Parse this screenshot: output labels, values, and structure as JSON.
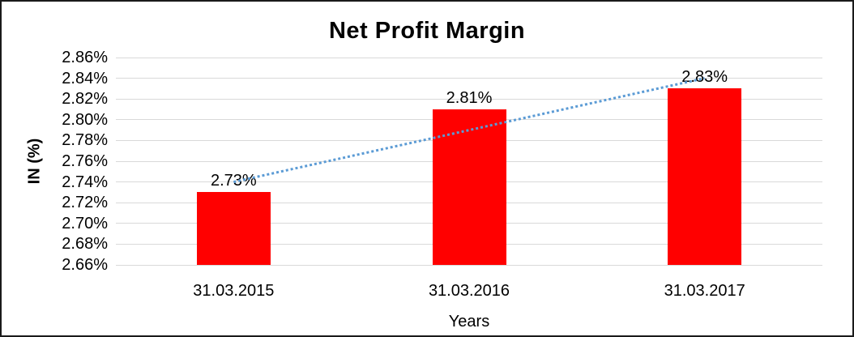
{
  "window": {
    "background": "#ffffff",
    "border_color": "#1a1a1a"
  },
  "chart_data": {
    "type": "bar",
    "title": "Net Profit Margin",
    "xlabel": "Years",
    "ylabel": "IN (%)",
    "categories": [
      "31.03.2015",
      "31.03.2016",
      "31.03.2017"
    ],
    "values": [
      2.73,
      2.81,
      2.83
    ],
    "data_labels": [
      "2.73%",
      "2.81%",
      "2.83%"
    ],
    "ylim": [
      2.66,
      2.86
    ],
    "ytick_step": 0.02,
    "ytick_labels": [
      "2.86%",
      "2.84%",
      "2.82%",
      "2.80%",
      "2.78%",
      "2.76%",
      "2.74%",
      "2.72%",
      "2.70%",
      "2.68%",
      "2.66%"
    ],
    "grid": true,
    "legend": false,
    "bar_color": "#FF0000",
    "gridline_color": "#D9D9D9",
    "text_color": "#000000",
    "trendline": {
      "type": "linear",
      "style": "dotted",
      "color": "#5B9BD5",
      "start_value": 2.74,
      "end_value": 2.84
    }
  }
}
